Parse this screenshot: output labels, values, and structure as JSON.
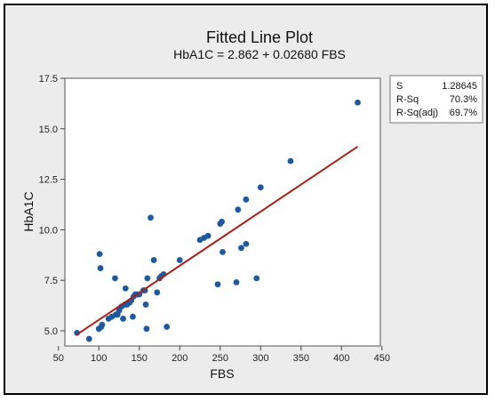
{
  "chart_data": {
    "type": "scatter",
    "title": "Fitted Line Plot",
    "subtitle": "HbA1C = 2.862 + 0.02680 FBS",
    "xlabel": "FBS",
    "ylabel": "HbA1C",
    "xlim": [
      58,
      448
    ],
    "ylim": [
      4.25,
      17.5
    ],
    "xticks": [
      "50",
      "100",
      "150",
      "200",
      "250",
      "300",
      "350",
      "400",
      "450"
    ],
    "yticks": [
      "5.0",
      "7.5",
      "10.0",
      "12.5",
      "15.0",
      "17.5"
    ],
    "grid": false,
    "fit_line": {
      "intercept": 2.862,
      "slope": 0.0268,
      "x_range": [
        72,
        420
      ]
    },
    "points": [
      {
        "x": 73,
        "y": 4.9
      },
      {
        "x": 88,
        "y": 4.6
      },
      {
        "x": 100,
        "y": 5.1
      },
      {
        "x": 101,
        "y": 8.8
      },
      {
        "x": 102,
        "y": 8.1
      },
      {
        "x": 103,
        "y": 5.2
      },
      {
        "x": 104,
        "y": 5.3
      },
      {
        "x": 112,
        "y": 5.6
      },
      {
        "x": 116,
        "y": 5.7
      },
      {
        "x": 120,
        "y": 7.6
      },
      {
        "x": 121,
        "y": 5.8
      },
      {
        "x": 123,
        "y": 5.8
      },
      {
        "x": 125,
        "y": 6.0
      },
      {
        "x": 128,
        "y": 6.2
      },
      {
        "x": 130,
        "y": 5.6
      },
      {
        "x": 132,
        "y": 6.3
      },
      {
        "x": 133,
        "y": 7.1
      },
      {
        "x": 135,
        "y": 6.3
      },
      {
        "x": 138,
        "y": 6.4
      },
      {
        "x": 140,
        "y": 6.5
      },
      {
        "x": 142,
        "y": 5.7
      },
      {
        "x": 143,
        "y": 6.7
      },
      {
        "x": 145,
        "y": 6.8
      },
      {
        "x": 147,
        "y": 6.8
      },
      {
        "x": 150,
        "y": 6.8
      },
      {
        "x": 155,
        "y": 7.0
      },
      {
        "x": 157,
        "y": 7.0
      },
      {
        "x": 158,
        "y": 6.3
      },
      {
        "x": 159,
        "y": 5.1
      },
      {
        "x": 160,
        "y": 7.6
      },
      {
        "x": 164,
        "y": 10.6
      },
      {
        "x": 168,
        "y": 8.5
      },
      {
        "x": 172,
        "y": 6.9
      },
      {
        "x": 175,
        "y": 7.6
      },
      {
        "x": 177,
        "y": 7.7
      },
      {
        "x": 180,
        "y": 7.8
      },
      {
        "x": 184,
        "y": 5.2
      },
      {
        "x": 200,
        "y": 8.5
      },
      {
        "x": 225,
        "y": 9.5
      },
      {
        "x": 230,
        "y": 9.6
      },
      {
        "x": 235,
        "y": 9.7
      },
      {
        "x": 247,
        "y": 7.3
      },
      {
        "x": 250,
        "y": 10.3
      },
      {
        "x": 252,
        "y": 10.4
      },
      {
        "x": 253,
        "y": 8.9
      },
      {
        "x": 270,
        "y": 7.4
      },
      {
        "x": 272,
        "y": 11.0
      },
      {
        "x": 276,
        "y": 9.1
      },
      {
        "x": 282,
        "y": 9.3
      },
      {
        "x": 282,
        "y": 11.5
      },
      {
        "x": 295,
        "y": 7.6
      },
      {
        "x": 300,
        "y": 12.1
      },
      {
        "x": 337,
        "y": 13.4
      },
      {
        "x": 420,
        "y": 16.3
      }
    ],
    "colors": {
      "points": "#1f5a9e",
      "fit_line": "#a8201a",
      "frame_bg": "#ececec",
      "plot_bg": "#ffffff"
    },
    "stats_box": {
      "rows": [
        {
          "label": "S",
          "value": "1.28645"
        },
        {
          "label": "R-Sq",
          "value": "70.3%"
        },
        {
          "label": "R-Sq(adj)",
          "value": "69.7%"
        }
      ]
    }
  }
}
